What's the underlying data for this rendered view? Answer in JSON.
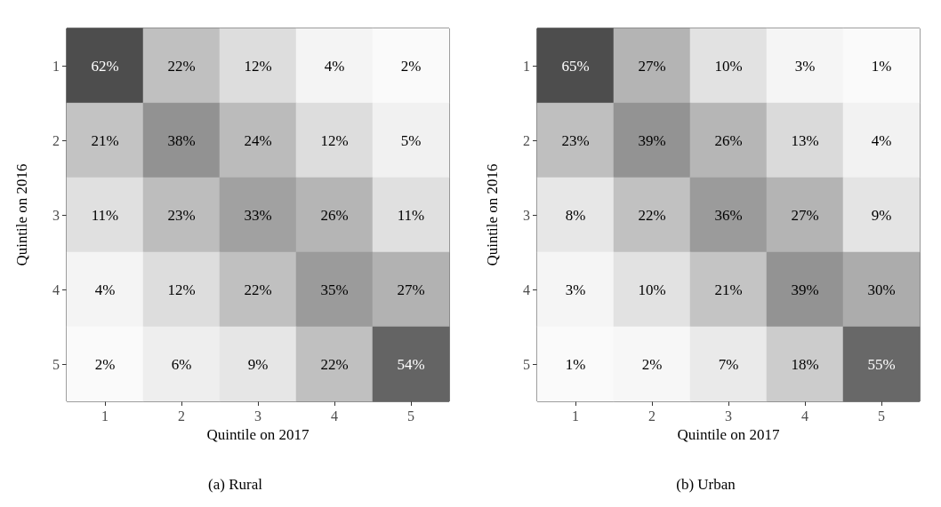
{
  "chart_data": [
    {
      "type": "heatmap",
      "title": "(a) Rural",
      "xlabel": "Quintile on 2017",
      "ylabel": "Quintile on 2016",
      "categories": [
        "1",
        "2",
        "3",
        "4",
        "5"
      ],
      "y_categories": [
        "1",
        "2",
        "3",
        "4",
        "5"
      ],
      "cells": [
        [
          62,
          22,
          12,
          4,
          2
        ],
        [
          21,
          38,
          24,
          12,
          5
        ],
        [
          11,
          23,
          33,
          26,
          11
        ],
        [
          4,
          12,
          22,
          35,
          27
        ],
        [
          2,
          6,
          9,
          22,
          54
        ]
      ],
      "cell_labels": [
        [
          "62%",
          "22%",
          "12%",
          "4%",
          "2%"
        ],
        [
          "21%",
          "38%",
          "24%",
          "12%",
          "5%"
        ],
        [
          "11%",
          "23%",
          "33%",
          "26%",
          "11%"
        ],
        [
          "4%",
          "12%",
          "22%",
          "35%",
          "27%"
        ],
        [
          "2%",
          "6%",
          "9%",
          "22%",
          "54%"
        ]
      ]
    },
    {
      "type": "heatmap",
      "title": "(b) Urban",
      "xlabel": "Quintile on 2017",
      "ylabel": "Quintile on 2016",
      "categories": [
        "1",
        "2",
        "3",
        "4",
        "5"
      ],
      "y_categories": [
        "1",
        "2",
        "3",
        "4",
        "5"
      ],
      "cells": [
        [
          65,
          27,
          10,
          3,
          1
        ],
        [
          23,
          39,
          26,
          13,
          4
        ],
        [
          8,
          22,
          36,
          27,
          9
        ],
        [
          3,
          10,
          21,
          39,
          30
        ],
        [
          1,
          2,
          7,
          18,
          55
        ]
      ],
      "cell_labels": [
        [
          "65%",
          "27%",
          "10%",
          "3%",
          "1%"
        ],
        [
          "23%",
          "39%",
          "26%",
          "13%",
          "4%"
        ],
        [
          "8%",
          "22%",
          "36%",
          "27%",
          "9%"
        ],
        [
          "3%",
          "10%",
          "21%",
          "39%",
          "30%"
        ],
        [
          "1%",
          "2%",
          "7%",
          "18%",
          "55%"
        ]
      ]
    }
  ]
}
